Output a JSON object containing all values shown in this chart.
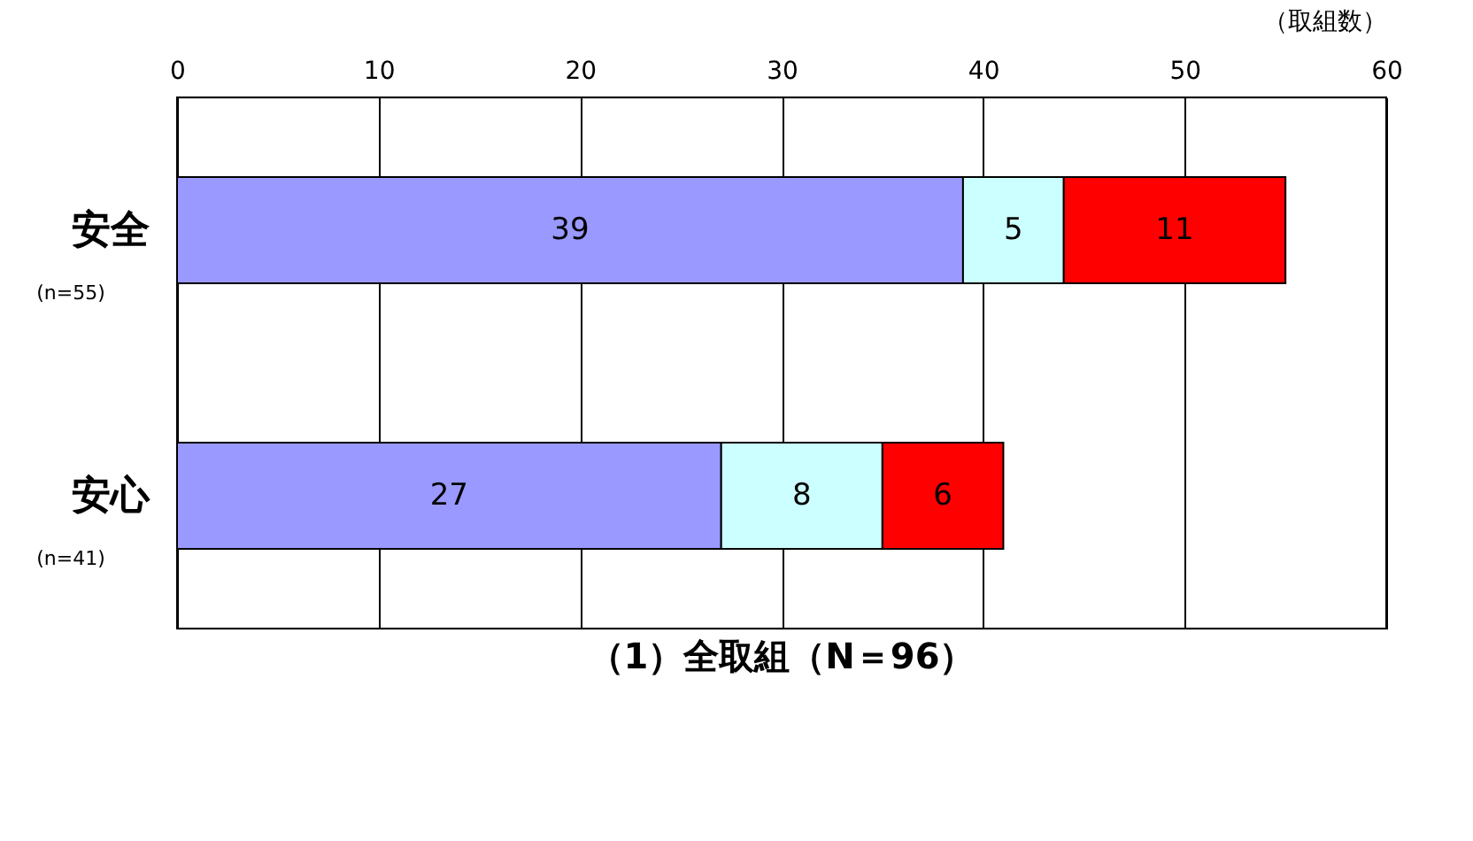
{
  "chart_data": {
    "type": "bar",
    "orientation": "horizontal",
    "stacked": true,
    "title": "（1）全取組（N＝96）",
    "xlabel": "（取組数）",
    "categories": [
      "安全",
      "安心"
    ],
    "series": [
      {
        "color": "#9999ff",
        "values": [
          39,
          27
        ]
      },
      {
        "color": "#ccffff",
        "values": [
          5,
          8
        ]
      },
      {
        "color": "#ff0000",
        "values": [
          11,
          6
        ]
      }
    ],
    "annotations": [
      "(n=55)",
      "(n=41)"
    ],
    "xlim": [
      0,
      60
    ],
    "xticks": [
      0,
      10,
      20,
      30,
      40,
      50,
      60
    ],
    "grid": "x",
    "data_labels": true
  }
}
